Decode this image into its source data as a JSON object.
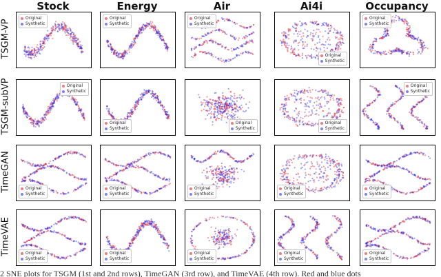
{
  "columns": [
    "Stock",
    "Energy",
    "Air",
    "Ai4i",
    "Occupancy"
  ],
  "rows": [
    "TSGM-VP",
    "TSGM-subVP",
    "TimeGAN",
    "TimeVAE"
  ],
  "legend": {
    "original": "Original",
    "synthetic": "Synthetic"
  },
  "colors": {
    "original": "#e8212d",
    "synthetic": "#2a2ee8"
  },
  "caption_fragment": "2    SNE plots for TSGM (1st and 2nd rows), TimeGAN (3rd row), and TimeVAE (4th row). Red and blue dots",
  "chart_data": {
    "type": "scatter",
    "title": "",
    "xlabel": "",
    "ylabel": "",
    "grid": false,
    "layout": "grid of t-SNE scatter plots, 4 rows x 5 columns",
    "series": [
      {
        "name": "Original",
        "color": "#e8212d"
      },
      {
        "name": "Synthetic",
        "color": "#2a2ee8"
      }
    ],
    "legend_placement": {
      "TSGM-VP": "top-left (bottom-right for Ai4i)",
      "TSGM-subVP": "top-right (bottom-left for Energy, bottom-right for Air and Ai4i)",
      "TimeGAN": "bottom-left",
      "TimeVAE": "bottom-left"
    }
  }
}
